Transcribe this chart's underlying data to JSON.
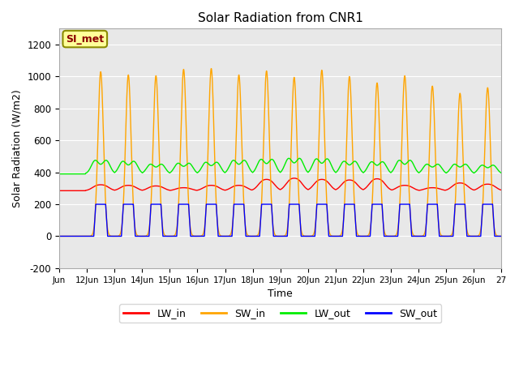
{
  "title": "Solar Radiation from CNR1",
  "xlabel": "Time",
  "ylabel": "Solar Radiation (W/m2)",
  "annotation": "SI_met",
  "ylim": [
    -200,
    1300
  ],
  "yticks": [
    -200,
    0,
    200,
    400,
    600,
    800,
    1000,
    1200
  ],
  "xlim_start": 11.0,
  "xlim_end": 27.0,
  "xtick_positions": [
    11,
    12,
    13,
    14,
    15,
    16,
    17,
    18,
    19,
    20,
    21,
    22,
    23,
    24,
    25,
    26,
    27
  ],
  "xtick_labels": [
    "Jun",
    "12Jun",
    "13Jun",
    "14Jun",
    "15Jun",
    "16Jun",
    "17Jun",
    "18Jun",
    "19Jun",
    "20Jun",
    "21Jun",
    "22Jun",
    "23Jun",
    "24Jun",
    "25Jun",
    "26Jun",
    "27"
  ],
  "colors": {
    "LW_in": "#ff0000",
    "SW_in": "#ffa500",
    "LW_out": "#00ee00",
    "SW_out": "#0000ff"
  },
  "background_color": "#ffffff",
  "plot_bg_color": "#e8e8e8",
  "grid_color": "#ffffff",
  "sw_peaks": [
    1030,
    1010,
    1005,
    1045,
    1050,
    1010,
    1035,
    995,
    1040,
    1000,
    960,
    1005,
    940,
    895,
    930
  ],
  "lw_out_peaks": [
    530,
    520,
    490,
    500,
    510,
    530,
    540,
    550,
    545,
    520,
    515,
    530,
    490,
    490,
    480
  ],
  "lw_out_base": 390,
  "lw_in_peaks": [
    335,
    330,
    325,
    310,
    330,
    330,
    380,
    390,
    380,
    375,
    385,
    330,
    310,
    350,
    340
  ],
  "lw_in_base": 285,
  "sw_out_peak": 200
}
